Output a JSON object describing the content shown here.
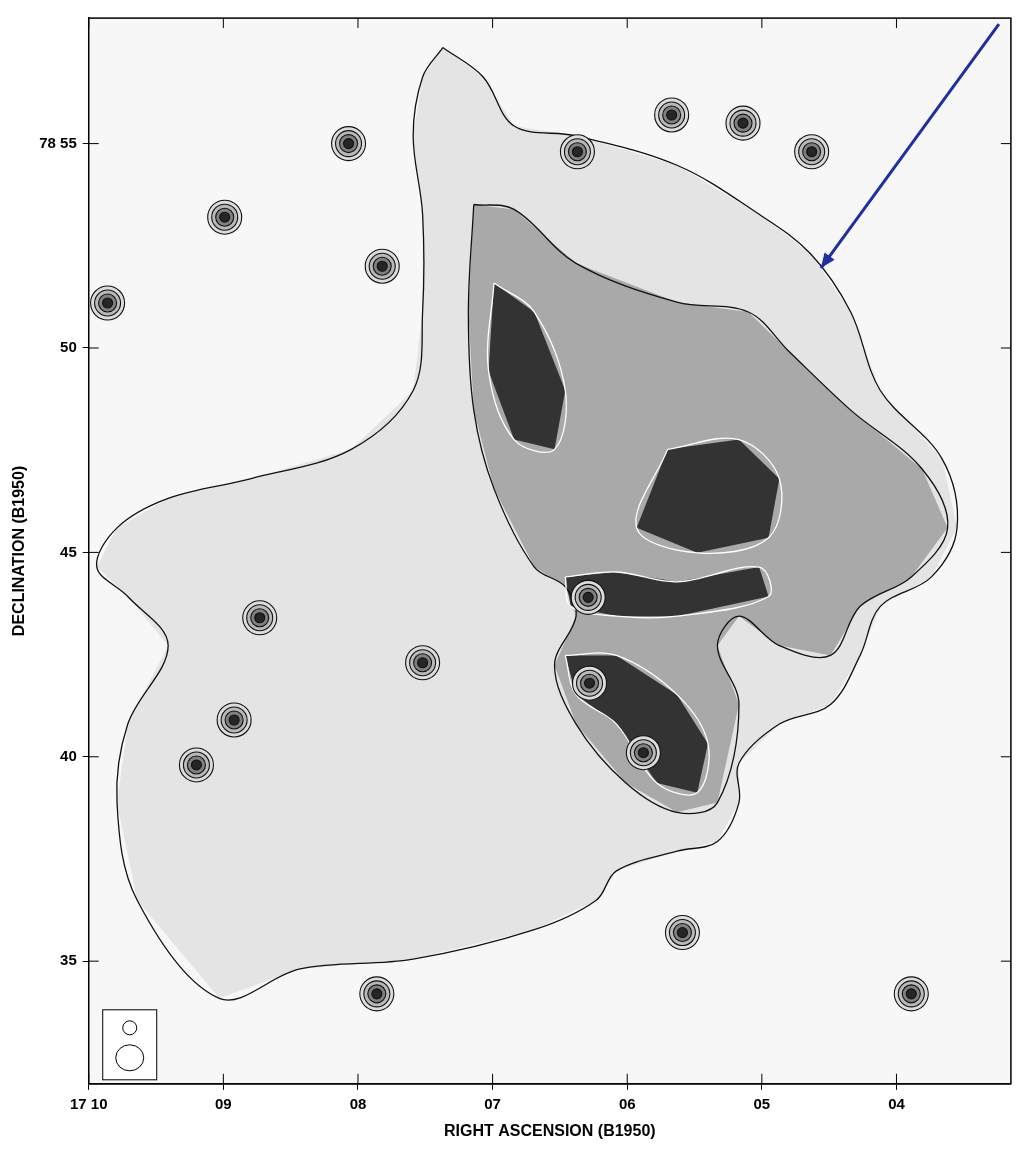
{
  "chart_data": {
    "type": "contour",
    "x_label": "RIGHT ASCENSION (B1950)",
    "y_label": "DECLINATION (B1950)",
    "xlim": [
      10,
      3.15
    ],
    "ylim": [
      32,
      58.07
    ],
    "xticks": [
      {
        "value": 10,
        "label": "17 10"
      },
      {
        "value": 9,
        "label": "09"
      },
      {
        "value": 8,
        "label": "08"
      },
      {
        "value": 7,
        "label": "07"
      },
      {
        "value": 6,
        "label": "06"
      },
      {
        "value": 5,
        "label": "05"
      },
      {
        "value": 4,
        "label": "04"
      }
    ],
    "yticks": [
      35,
      40,
      45,
      50,
      {
        "value": 55,
        "label": "78 55"
      }
    ],
    "grid": false,
    "contours": [
      [
        [
          [
            7.37,
            57.35
          ],
          [
            7.07,
            56.63
          ],
          [
            6.84,
            55.43
          ],
          [
            6.38,
            55.19
          ],
          [
            5.63,
            54.47
          ],
          [
            5.02,
            53.27
          ],
          [
            4.64,
            52.31
          ],
          [
            4.34,
            50.88
          ],
          [
            4.12,
            48.96
          ],
          [
            3.66,
            47.28
          ],
          [
            3.55,
            45.6
          ],
          [
            3.74,
            44.4
          ],
          [
            4.12,
            43.68
          ],
          [
            4.27,
            42.48
          ],
          [
            4.49,
            41.28
          ],
          [
            4.87,
            40.8
          ],
          [
            5.17,
            39.84
          ],
          [
            5.17,
            38.88
          ],
          [
            5.33,
            37.93
          ],
          [
            5.63,
            37.69
          ],
          [
            6.08,
            37.21
          ],
          [
            6.23,
            36.49
          ],
          [
            6.69,
            35.77
          ],
          [
            7.59,
            35.05
          ],
          [
            8.43,
            34.81
          ],
          [
            9.03,
            34.09
          ],
          [
            9.64,
            36.49
          ],
          [
            9.79,
            38.88
          ],
          [
            9.71,
            40.8
          ],
          [
            9.41,
            42.72
          ],
          [
            9.71,
            43.92
          ],
          [
            9.94,
            44.64
          ],
          [
            9.79,
            45.6
          ],
          [
            9.41,
            46.32
          ],
          [
            8.8,
            46.8
          ],
          [
            8.05,
            47.52
          ],
          [
            7.59,
            48.96
          ],
          [
            7.52,
            50.88
          ],
          [
            7.52,
            53.27
          ],
          [
            7.59,
            55.19
          ],
          [
            7.52,
            56.63
          ]
        ]
      ],
      [
        [
          [
            7.14,
            53.51
          ],
          [
            6.84,
            53.39
          ],
          [
            6.38,
            52.07
          ],
          [
            5.63,
            51.12
          ],
          [
            5.1,
            50.88
          ],
          [
            4.8,
            49.92
          ],
          [
            4.34,
            48.48
          ],
          [
            3.81,
            47.04
          ],
          [
            3.62,
            45.6
          ],
          [
            3.89,
            44.4
          ],
          [
            4.27,
            43.68
          ],
          [
            4.49,
            42.48
          ],
          [
            4.87,
            42.72
          ],
          [
            5.17,
            43.44
          ],
          [
            5.33,
            42.72
          ],
          [
            5.17,
            41.28
          ],
          [
            5.33,
            38.88
          ],
          [
            5.63,
            38.64
          ],
          [
            6.01,
            39.36
          ],
          [
            6.38,
            40.8
          ],
          [
            6.54,
            42.24
          ],
          [
            6.38,
            43.44
          ],
          [
            6.46,
            44.16
          ],
          [
            6.69,
            44.64
          ],
          [
            6.99,
            46.56
          ],
          [
            7.14,
            48.48
          ],
          [
            7.18,
            50.88
          ]
        ]
      ],
      [
        [
          [
            6.99,
            51.59
          ],
          [
            6.69,
            50.88
          ],
          [
            6.46,
            48.96
          ],
          [
            6.54,
            47.52
          ],
          [
            6.84,
            47.76
          ],
          [
            7.03,
            49.44
          ]
        ],
        [
          [
            5.7,
            47.52
          ],
          [
            5.17,
            47.76
          ],
          [
            4.87,
            46.8
          ],
          [
            4.95,
            45.36
          ],
          [
            5.48,
            44.99
          ],
          [
            5.93,
            45.6
          ]
        ],
        [
          [
            6.46,
            44.4
          ],
          [
            6.08,
            44.52
          ],
          [
            5.63,
            44.28
          ],
          [
            5.02,
            44.64
          ],
          [
            4.95,
            43.92
          ],
          [
            5.63,
            43.44
          ],
          [
            6.08,
            43.44
          ],
          [
            6.42,
            43.68
          ]
        ],
        [
          [
            6.46,
            42.48
          ],
          [
            6.08,
            42.48
          ],
          [
            5.63,
            41.52
          ],
          [
            5.4,
            40.32
          ],
          [
            5.48,
            39.12
          ],
          [
            5.78,
            39.36
          ],
          [
            6.08,
            40.8
          ],
          [
            6.38,
            41.52
          ]
        ]
      ]
    ],
    "sources": [
      [
        8.07,
        55.0
      ],
      [
        6.37,
        54.8
      ],
      [
        5.67,
        55.7
      ],
      [
        5.14,
        55.5
      ],
      [
        4.63,
        54.8
      ],
      [
        9.86,
        51.1
      ],
      [
        8.99,
        53.2
      ],
      [
        7.82,
        52.0
      ],
      [
        8.73,
        43.4
      ],
      [
        7.52,
        42.3
      ],
      [
        6.29,
        43.9
      ],
      [
        6.28,
        41.8
      ],
      [
        5.88,
        40.1
      ],
      [
        8.92,
        40.9
      ],
      [
        9.2,
        39.8
      ],
      [
        7.86,
        34.2
      ],
      [
        3.89,
        34.2
      ],
      [
        5.59,
        35.7
      ]
    ]
  }
}
